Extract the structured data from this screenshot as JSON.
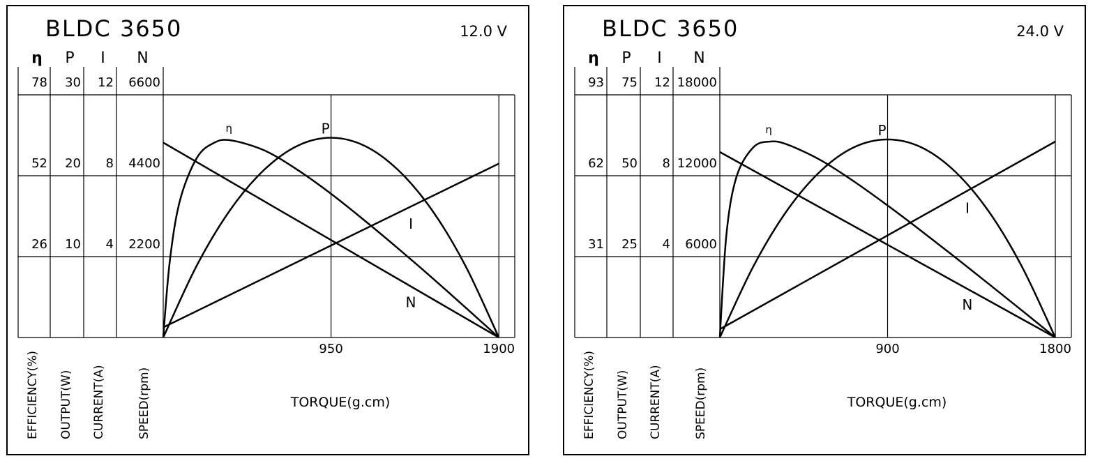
{
  "chart_data": [
    {
      "type": "line",
      "title": "BLDC 3650",
      "voltage": "12.0 V",
      "x_label": "TORQUE(g.cm)",
      "xlim": [
        0,
        1990
      ],
      "xticks": [
        950,
        1900
      ],
      "axes": [
        {
          "symbol": "η",
          "label": "EFFICIENCY(%)",
          "lim": [
            0,
            78
          ],
          "ticks": [
            26,
            52,
            78
          ]
        },
        {
          "symbol": "P",
          "label": "OUTPUT(W)",
          "lim": [
            0,
            30
          ],
          "ticks": [
            10,
            20,
            30
          ]
        },
        {
          "symbol": "I",
          "label": "CURRENT(A)",
          "lim": [
            0,
            12
          ],
          "ticks": [
            4,
            8,
            12
          ]
        },
        {
          "symbol": "N",
          "label": "SPEED(rpm)",
          "lim": [
            0,
            6600
          ],
          "ticks": [
            2200,
            4400,
            6600
          ]
        }
      ],
      "series": [
        {
          "name": "η",
          "axis": 0,
          "color": "#000000",
          "x": [
            0,
            38,
            95,
            190,
            285,
            380,
            570,
            760,
            950,
            1140,
            1330,
            1520,
            1710,
            1900
          ],
          "values": [
            0,
            24.9,
            44.1,
            57.7,
            62.5,
            63.4,
            60.2,
            53.9,
            46.2,
            37.6,
            28.6,
            19.3,
            9.7,
            0
          ]
        },
        {
          "name": "P",
          "axis": 1,
          "color": "#000000",
          "x": [
            0,
            190,
            380,
            570,
            760,
            950,
            1140,
            1330,
            1520,
            1710,
            1900
          ],
          "values": [
            0,
            8.9,
            15.8,
            20.7,
            23.7,
            24.7,
            23.7,
            20.7,
            15.8,
            8.9,
            0
          ]
        },
        {
          "name": "N",
          "axis": 3,
          "color": "#000000",
          "x": [
            0,
            1900
          ],
          "values": [
            5300,
            0
          ]
        },
        {
          "name": "I",
          "axis": 2,
          "color": "#000000",
          "x": [
            0,
            1900
          ],
          "values": [
            0.5,
            8.6
          ]
        }
      ]
    },
    {
      "type": "line",
      "title": "BLDC 3650",
      "voltage": "24.0 V",
      "x_label": "TORQUE(g.cm)",
      "xlim": [
        0,
        1886
      ],
      "xticks": [
        900,
        1800
      ],
      "axes": [
        {
          "symbol": "η",
          "label": "EFFICIENCY(%)",
          "lim": [
            0,
            93
          ],
          "ticks": [
            31,
            62,
            93
          ]
        },
        {
          "symbol": "P",
          "label": "OUTPUT(W)",
          "lim": [
            0,
            75
          ],
          "ticks": [
            25,
            50,
            75
          ]
        },
        {
          "symbol": "I",
          "label": "CURRENT(A)",
          "lim": [
            0,
            12
          ],
          "ticks": [
            4,
            8,
            12
          ]
        },
        {
          "symbol": "N",
          "label": "SPEED(rpm)",
          "lim": [
            0,
            18000
          ],
          "ticks": [
            6000,
            12000,
            18000
          ]
        }
      ],
      "series": [
        {
          "name": "η",
          "axis": 0,
          "color": "#000000",
          "x": [
            0,
            36,
            90,
            180,
            270,
            360,
            540,
            720,
            900,
            1080,
            1260,
            1440,
            1620,
            1800
          ],
          "values": [
            0,
            39.9,
            61.7,
            72.9,
            75.1,
            74.0,
            68.0,
            59.8,
            50.6,
            40.9,
            30.9,
            20.7,
            10.4,
            0
          ]
        },
        {
          "name": "P",
          "axis": 1,
          "color": "#000000",
          "x": [
            0,
            180,
            360,
            540,
            720,
            900,
            1080,
            1260,
            1440,
            1620,
            1800
          ],
          "values": [
            0,
            22.0,
            39.2,
            51.4,
            58.8,
            61.2,
            58.8,
            51.4,
            39.2,
            22.0,
            0
          ]
        },
        {
          "name": "N",
          "axis": 3,
          "color": "#000000",
          "x": [
            0,
            1800
          ],
          "values": [
            13760,
            0
          ]
        },
        {
          "name": "I",
          "axis": 2,
          "color": "#000000",
          "x": [
            0,
            1800
          ],
          "values": [
            0.41,
            9.69
          ]
        }
      ]
    }
  ]
}
